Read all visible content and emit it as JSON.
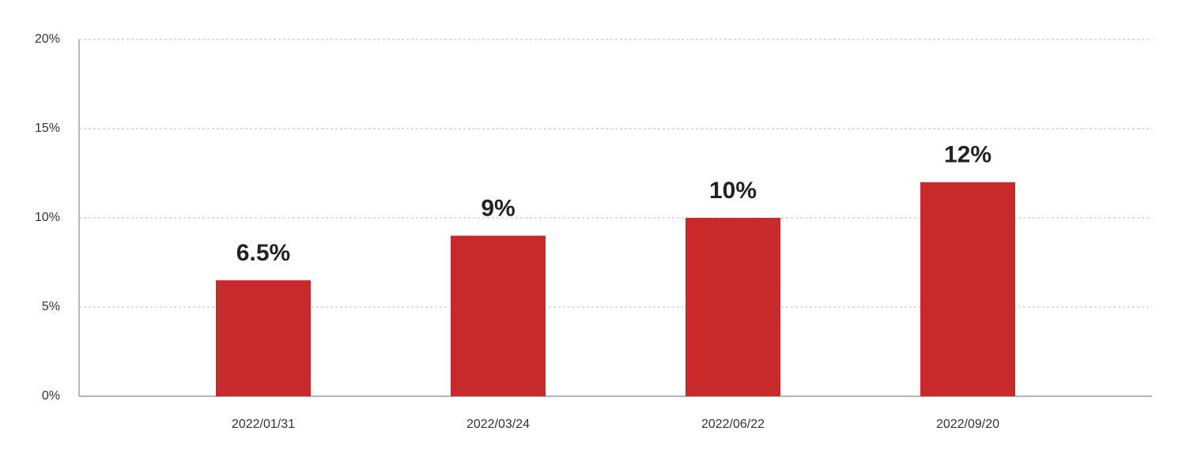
{
  "chart_data": {
    "type": "bar",
    "categories": [
      "2022/01/31",
      "2022/03/24",
      "2022/06/22",
      "2022/09/20"
    ],
    "values": [
      6.5,
      9,
      10,
      12
    ],
    "value_labels": [
      "6.5%",
      "9%",
      "10%",
      "12%"
    ],
    "color": "#c8292a",
    "ylim": [
      0,
      20
    ],
    "yticks": [
      {
        "value": 0,
        "label": "0%"
      },
      {
        "value": 5,
        "label": "5%"
      },
      {
        "value": 10,
        "label": "10%"
      },
      {
        "value": 15,
        "label": "15%"
      },
      {
        "value": 20,
        "label": "20%"
      }
    ],
    "grid": true
  }
}
